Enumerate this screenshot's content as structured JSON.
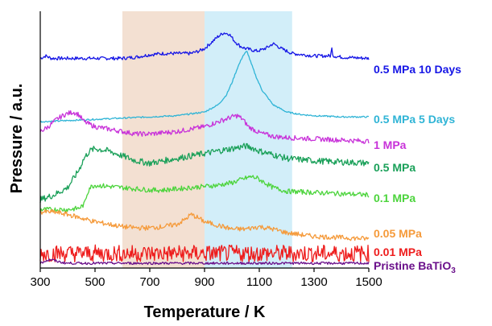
{
  "chart_data": {
    "type": "line",
    "title": "",
    "xlabel": "Temperature / K",
    "ylabel": "Pressure / a.u.",
    "xlim": [
      300,
      1500
    ],
    "x_ticks": [
      300,
      500,
      700,
      900,
      1100,
      1300,
      1500
    ],
    "y_ticks_shown": false,
    "grid": false,
    "shaded_regions": [
      {
        "x": [
          600,
          900
        ],
        "color": "#f3e0d2"
      },
      {
        "x": [
          900,
          1220
        ],
        "color": "#d2eef9"
      }
    ],
    "series": [
      {
        "name": "0.5 MPa 10 Days",
        "color": "#1616e6",
        "noise": 0.7,
        "points": [
          [
            300,
            84
          ],
          [
            320,
            85
          ],
          [
            340,
            84
          ],
          [
            360,
            84
          ],
          [
            380,
            84
          ],
          [
            400,
            84
          ],
          [
            500,
            84
          ],
          [
            600,
            84
          ],
          [
            650,
            84.5
          ],
          [
            700,
            85.5
          ],
          [
            750,
            86
          ],
          [
            800,
            86
          ],
          [
            850,
            86
          ],
          [
            880,
            87
          ],
          [
            900,
            88
          ],
          [
            930,
            91
          ],
          [
            950,
            93
          ],
          [
            970,
            94.5
          ],
          [
            990,
            94
          ],
          [
            1010,
            91
          ],
          [
            1030,
            89
          ],
          [
            1050,
            88
          ],
          [
            1070,
            87.5
          ],
          [
            1090,
            87
          ],
          [
            1110,
            87.5
          ],
          [
            1130,
            88.5
          ],
          [
            1150,
            90
          ],
          [
            1160,
            89.5
          ],
          [
            1180,
            88
          ],
          [
            1200,
            87
          ],
          [
            1220,
            86
          ],
          [
            1300,
            85
          ],
          [
            1360,
            85
          ],
          [
            1365,
            88
          ],
          [
            1370,
            85
          ],
          [
            1400,
            84.5
          ],
          [
            1500,
            84
          ]
        ]
      },
      {
        "name": "0.5 MPa 5 Days",
        "color": "#2fb4d6",
        "noise": 0.3,
        "points": [
          [
            300,
            58
          ],
          [
            400,
            58.5
          ],
          [
            500,
            59
          ],
          [
            600,
            59.5
          ],
          [
            700,
            60
          ],
          [
            800,
            60.5
          ],
          [
            900,
            62
          ],
          [
            950,
            65
          ],
          [
            980,
            69
          ],
          [
            1000,
            74
          ],
          [
            1020,
            80
          ],
          [
            1040,
            85
          ],
          [
            1055,
            87
          ],
          [
            1070,
            82
          ],
          [
            1090,
            76
          ],
          [
            1110,
            71
          ],
          [
            1150,
            65
          ],
          [
            1200,
            62
          ],
          [
            1250,
            61
          ],
          [
            1300,
            60.5
          ],
          [
            1400,
            60
          ],
          [
            1500,
            60
          ]
        ]
      },
      {
        "name": "1 MPa",
        "color": "#c832d9",
        "noise": 1.0,
        "points": [
          [
            300,
            54
          ],
          [
            330,
            56
          ],
          [
            360,
            59
          ],
          [
            390,
            61
          ],
          [
            420,
            62
          ],
          [
            440,
            61
          ],
          [
            460,
            58
          ],
          [
            500,
            56
          ],
          [
            550,
            55
          ],
          [
            600,
            54
          ],
          [
            650,
            53
          ],
          [
            700,
            53
          ],
          [
            750,
            53.5
          ],
          [
            800,
            54
          ],
          [
            850,
            55
          ],
          [
            900,
            56
          ],
          [
            950,
            58
          ],
          [
            1000,
            60
          ],
          [
            1020,
            60.5
          ],
          [
            1040,
            59
          ],
          [
            1060,
            56
          ],
          [
            1100,
            53.5
          ],
          [
            1150,
            52
          ],
          [
            1200,
            51.5
          ],
          [
            1300,
            51
          ],
          [
            1400,
            50.5
          ],
          [
            1500,
            50
          ]
        ]
      },
      {
        "name": "0.5 MPa",
        "color": "#1aa059",
        "noise": 1.3,
        "points": [
          [
            300,
            26
          ],
          [
            350,
            28
          ],
          [
            400,
            31
          ],
          [
            440,
            38
          ],
          [
            460,
            43
          ],
          [
            480,
            46
          ],
          [
            500,
            47
          ],
          [
            550,
            46
          ],
          [
            600,
            44
          ],
          [
            650,
            42
          ],
          [
            700,
            41
          ],
          [
            750,
            42
          ],
          [
            800,
            43
          ],
          [
            850,
            44
          ],
          [
            900,
            45
          ],
          [
            950,
            46
          ],
          [
            1000,
            47
          ],
          [
            1050,
            48
          ],
          [
            1070,
            47.5
          ],
          [
            1100,
            46
          ],
          [
            1150,
            44.5
          ],
          [
            1200,
            43
          ],
          [
            1300,
            42
          ],
          [
            1400,
            41.5
          ],
          [
            1500,
            41
          ]
        ]
      },
      {
        "name": "0.1 MPa",
        "color": "#4cd43c",
        "noise": 1.0,
        "points": [
          [
            300,
            22
          ],
          [
            350,
            22
          ],
          [
            400,
            22
          ],
          [
            440,
            22.5
          ],
          [
            460,
            24
          ],
          [
            470,
            28
          ],
          [
            480,
            31
          ],
          [
            500,
            32
          ],
          [
            550,
            31.5
          ],
          [
            600,
            31
          ],
          [
            650,
            30.5
          ],
          [
            700,
            30
          ],
          [
            750,
            30
          ],
          [
            800,
            30.5
          ],
          [
            850,
            31
          ],
          [
            900,
            31.5
          ],
          [
            950,
            32
          ],
          [
            1000,
            33
          ],
          [
            1040,
            34.5
          ],
          [
            1070,
            35.5
          ],
          [
            1090,
            35
          ],
          [
            1120,
            33
          ],
          [
            1150,
            31
          ],
          [
            1200,
            29.5
          ],
          [
            1300,
            29
          ],
          [
            1400,
            28.5
          ],
          [
            1500,
            28
          ]
        ]
      },
      {
        "name": "0.05 MPa",
        "color": "#f59a3a",
        "noise": 1.0,
        "points": [
          [
            300,
            21
          ],
          [
            350,
            21
          ],
          [
            400,
            20
          ],
          [
            450,
            18.5
          ],
          [
            500,
            17
          ],
          [
            550,
            16
          ],
          [
            600,
            15
          ],
          [
            650,
            14.5
          ],
          [
            700,
            14.5
          ],
          [
            750,
            15
          ],
          [
            800,
            16
          ],
          [
            830,
            18
          ],
          [
            850,
            20
          ],
          [
            870,
            19
          ],
          [
            900,
            17
          ],
          [
            950,
            15.5
          ],
          [
            1000,
            14
          ],
          [
            1050,
            14
          ],
          [
            1100,
            15
          ],
          [
            1150,
            14
          ],
          [
            1200,
            12.5
          ],
          [
            1300,
            11
          ],
          [
            1400,
            10.5
          ],
          [
            1500,
            10
          ]
        ]
      },
      {
        "name": "0.01 MPa",
        "color": "#ee1c1c",
        "noise": 3.5,
        "points": [
          [
            300,
            4
          ],
          [
            400,
            4
          ],
          [
            600,
            4
          ],
          [
            800,
            4
          ],
          [
            1000,
            4
          ],
          [
            1200,
            4
          ],
          [
            1400,
            4
          ],
          [
            1500,
            4
          ]
        ]
      },
      {
        "name": "Pristine BaTiO3",
        "color": "#6a0f8a",
        "noise": 0.5,
        "points": [
          [
            300,
            0
          ],
          [
            320,
            1
          ],
          [
            340,
            1.5
          ],
          [
            360,
            0.8
          ],
          [
            380,
            0.3
          ],
          [
            400,
            0
          ],
          [
            600,
            0
          ],
          [
            800,
            0
          ],
          [
            1000,
            0
          ],
          [
            1200,
            0
          ],
          [
            1400,
            0
          ],
          [
            1500,
            0
          ]
        ]
      }
    ]
  },
  "labels": {
    "s0": "0.5 MPa 10 Days",
    "s1": "0.5 MPa 5 Days",
    "s2": "1 MPa",
    "s3": "0.5 MPa",
    "s4": "0.1 MPa",
    "s5": "0.05 MPa",
    "s6": "0.01 MPa",
    "s7_main": "Pristine BaTiO",
    "s7_sub": "3"
  }
}
